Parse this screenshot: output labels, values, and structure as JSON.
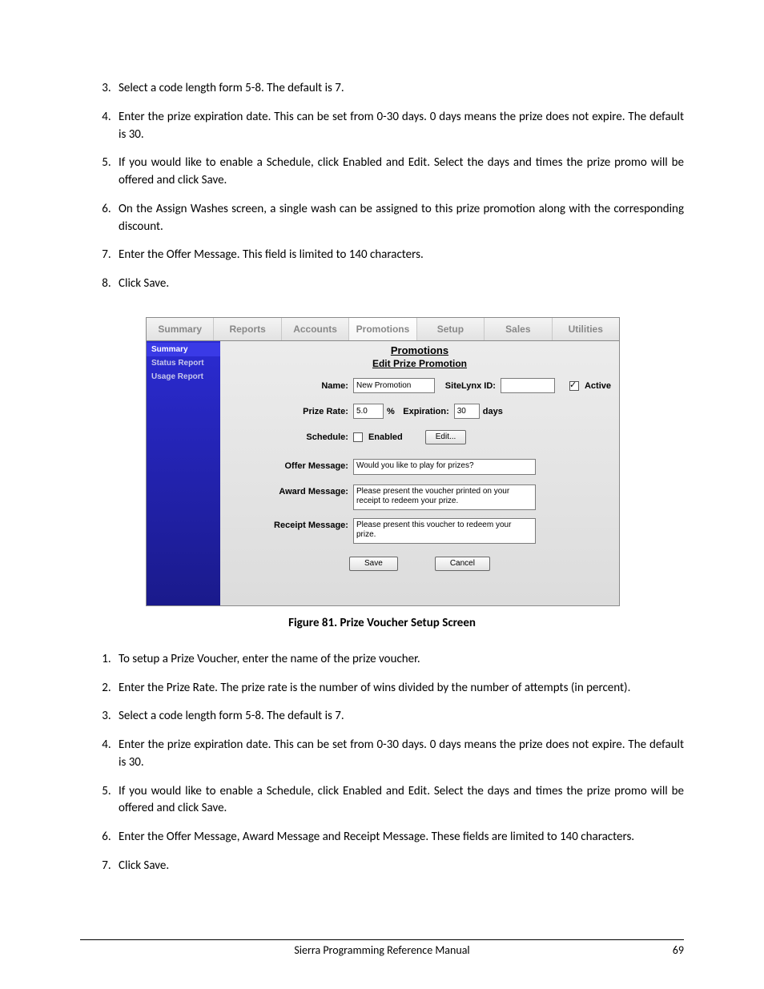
{
  "list_top": {
    "start": 3,
    "items": [
      "Select a code length form 5-8. The default is 7.",
      "Enter the prize expiration date. This can be set from 0-30 days. 0 days means the prize does not expire. The default is 30.",
      "If you would like to enable a Schedule, click Enabled and Edit. Select the days and times the prize promo will be offered and click Save.",
      "On the Assign Washes screen, a single wash can be assigned to this prize promotion along with the corresponding discount.",
      "Enter the Offer Message. This field is limited to 140 characters.",
      "Click Save."
    ]
  },
  "figure_caption": "Figure 81. Prize Voucher Setup Screen",
  "screenshot": {
    "tabs": [
      "Summary",
      "Reports",
      "Accounts",
      "Promotions",
      "Setup",
      "Sales",
      "Utilities"
    ],
    "active_tab_index": 3,
    "sidebar_items": [
      "Summary",
      "Status Report",
      "Usage Report"
    ],
    "sidebar_active_index": 0,
    "section_title": "Promotions",
    "section_sub": "Edit Prize Promotion",
    "labels": {
      "name": "Name:",
      "sitelynx": "SiteLynx ID:",
      "active": "Active",
      "prize_rate": "Prize Rate:",
      "percent": "%",
      "expiration": "Expiration:",
      "days": "days",
      "schedule": "Schedule:",
      "enabled": "Enabled",
      "edit_btn": "Edit...",
      "offer": "Offer Message:",
      "award": "Award Message:",
      "receipt": "Receipt Message:",
      "save": "Save",
      "cancel": "Cancel"
    },
    "values": {
      "name": "New Promotion",
      "sitelynx": "",
      "active_checked": true,
      "prize_rate": "5.0",
      "expiration": "30",
      "enabled_checked": false,
      "offer_msg": "Would you like to play for prizes?",
      "award_msg": "Please present the voucher printed on your receipt to redeem your prize.",
      "receipt_msg": "Please present this voucher to redeem your prize."
    }
  },
  "list_bottom": {
    "start": 1,
    "items": [
      "To setup a Prize Voucher, enter the name of the prize voucher.",
      "Enter the Prize Rate. The prize rate is the number of wins divided by the number of attempts (in percent).",
      "Select a code length form 5-8. The default is 7.",
      "Enter the prize expiration date. This can be set from 0-30 days. 0 days means the prize does not expire. The default is 30.",
      "If you would like to enable a Schedule, click Enabled and Edit. Select the days and times the prize promo will be offered and click Save.",
      "Enter the Offer Message, Award Message and Receipt Message. These fields are limited to 140 characters.",
      "Click Save."
    ]
  },
  "footer": {
    "title": "Sierra Programming Reference Manual",
    "page": "69"
  }
}
